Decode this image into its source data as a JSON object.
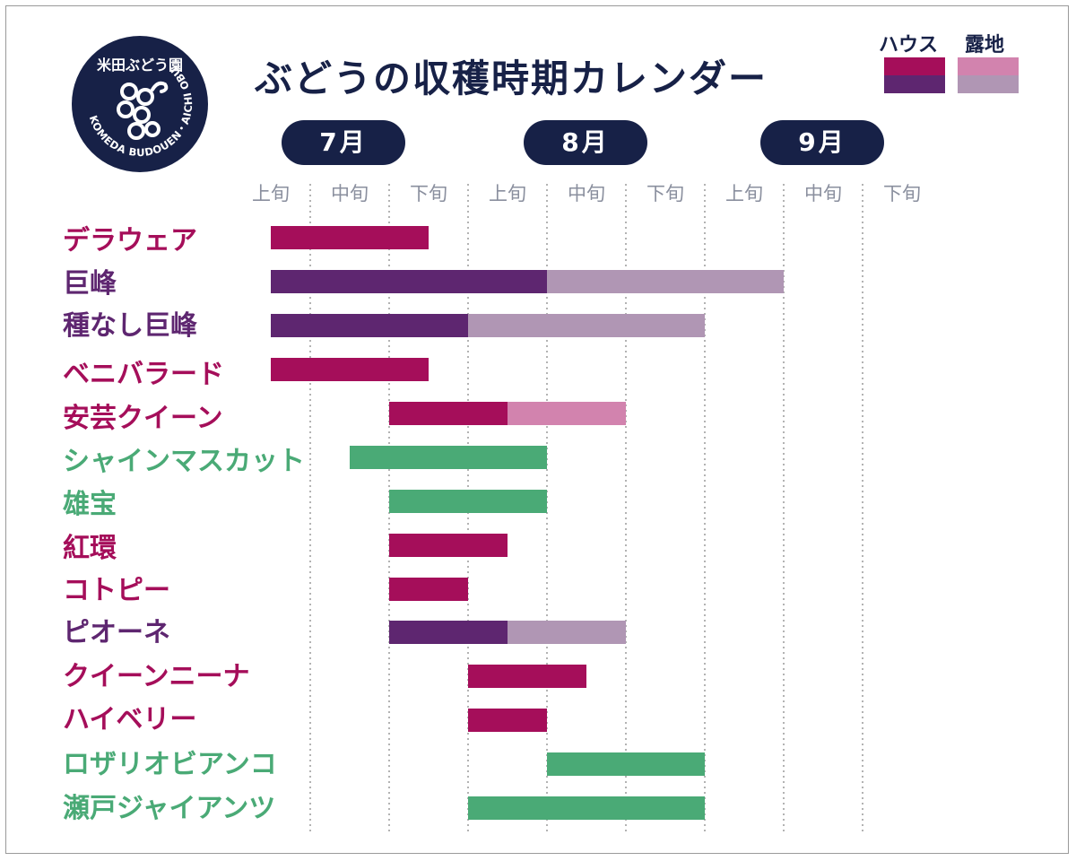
{
  "logo": {
    "top_text": "米田ぶどう園",
    "ring_text": "KOMEDA BUDOUEN・AICHI OBU",
    "icon": "grape-vine-icon"
  },
  "title": "ぶどうの収穫時期カレンダー",
  "legend": {
    "house_label": "ハウス",
    "outdoor_label": "露地",
    "colors": {
      "house_red": "#a50e5a",
      "house_purple": "#5e2670",
      "outdoor_pink": "#d283ae",
      "outdoor_lavender": "#b096b4"
    }
  },
  "months": [
    "7月",
    "8月",
    "9月"
  ],
  "dekads": [
    "上旬",
    "中旬",
    "下旬",
    "上旬",
    "中旬",
    "下旬",
    "上旬",
    "中旬",
    "下旬"
  ],
  "label_colors": {
    "red": "#a50e5a",
    "purple": "#5e2670",
    "green": "#4aaa76"
  },
  "chart_data": {
    "type": "bar",
    "orientation": "horizontal-gantt",
    "x_axis": {
      "unit": "旬 (dekad, 0 = 7月上旬 start)",
      "range": [
        0,
        9
      ],
      "ticks": [
        "7月上旬",
        "7月中旬",
        "7月下旬",
        "8月上旬",
        "8月中旬",
        "8月下旬",
        "9月上旬",
        "9月中旬",
        "9月下旬"
      ]
    },
    "grid": "vertical dotted at dekad boundaries",
    "legend_position": "top-right",
    "series_legend": [
      "ハウス",
      "露地"
    ],
    "rows": [
      {
        "name": "デラウェア",
        "label_color": "red",
        "segments": [
          {
            "type": "ハウス",
            "start": 0.5,
            "end": 2.5,
            "color": "#a50e5a"
          }
        ]
      },
      {
        "name": "巨峰",
        "label_color": "purple",
        "segments": [
          {
            "type": "ハウス",
            "start": 0.5,
            "end": 4.0,
            "color": "#5e2670"
          },
          {
            "type": "露地",
            "start": 4.0,
            "end": 7.0,
            "color": "#b096b4"
          }
        ]
      },
      {
        "name": "種なし巨峰",
        "label_color": "purple",
        "segments": [
          {
            "type": "ハウス",
            "start": 0.5,
            "end": 3.0,
            "color": "#5e2670"
          },
          {
            "type": "露地",
            "start": 3.0,
            "end": 6.0,
            "color": "#b096b4"
          }
        ]
      },
      {
        "name": "ベニバラード",
        "label_color": "red",
        "segments": [
          {
            "type": "ハウス",
            "start": 0.5,
            "end": 2.5,
            "color": "#a50e5a"
          }
        ]
      },
      {
        "name": "安芸クイーン",
        "label_color": "red",
        "segments": [
          {
            "type": "ハウス",
            "start": 2.0,
            "end": 3.5,
            "color": "#a50e5a"
          },
          {
            "type": "露地",
            "start": 3.5,
            "end": 5.0,
            "color": "#d283ae"
          }
        ]
      },
      {
        "name": "シャインマスカット",
        "label_color": "green",
        "segments": [
          {
            "type": "ハウス",
            "start": 1.5,
            "end": 4.0,
            "color": "#4aaa76"
          }
        ]
      },
      {
        "name": "雄宝",
        "label_color": "green",
        "segments": [
          {
            "type": "ハウス",
            "start": 2.0,
            "end": 4.0,
            "color": "#4aaa76"
          }
        ]
      },
      {
        "name": "紅環",
        "label_color": "red",
        "segments": [
          {
            "type": "ハウス",
            "start": 2.0,
            "end": 3.5,
            "color": "#a50e5a"
          }
        ]
      },
      {
        "name": "コトピー",
        "label_color": "red",
        "segments": [
          {
            "type": "ハウス",
            "start": 2.0,
            "end": 3.0,
            "color": "#a50e5a"
          }
        ]
      },
      {
        "name": "ピオーネ",
        "label_color": "purple",
        "segments": [
          {
            "type": "ハウス",
            "start": 2.0,
            "end": 3.5,
            "color": "#5e2670"
          },
          {
            "type": "露地",
            "start": 3.5,
            "end": 5.0,
            "color": "#b096b4"
          }
        ]
      },
      {
        "name": "クイーンニーナ",
        "label_color": "red",
        "segments": [
          {
            "type": "ハウス",
            "start": 3.0,
            "end": 4.5,
            "color": "#a50e5a"
          }
        ]
      },
      {
        "name": "ハイベリー",
        "label_color": "red",
        "segments": [
          {
            "type": "ハウス",
            "start": 3.0,
            "end": 4.0,
            "color": "#a50e5a"
          }
        ]
      },
      {
        "name": "ロザリオビアンコ",
        "label_color": "green",
        "segments": [
          {
            "type": "ハウス",
            "start": 4.0,
            "end": 6.0,
            "color": "#4aaa76"
          }
        ]
      },
      {
        "name": "瀬戸ジャイアンツ",
        "label_color": "green",
        "segments": [
          {
            "type": "ハウス",
            "start": 3.0,
            "end": 6.0,
            "color": "#4aaa76"
          }
        ]
      }
    ]
  }
}
